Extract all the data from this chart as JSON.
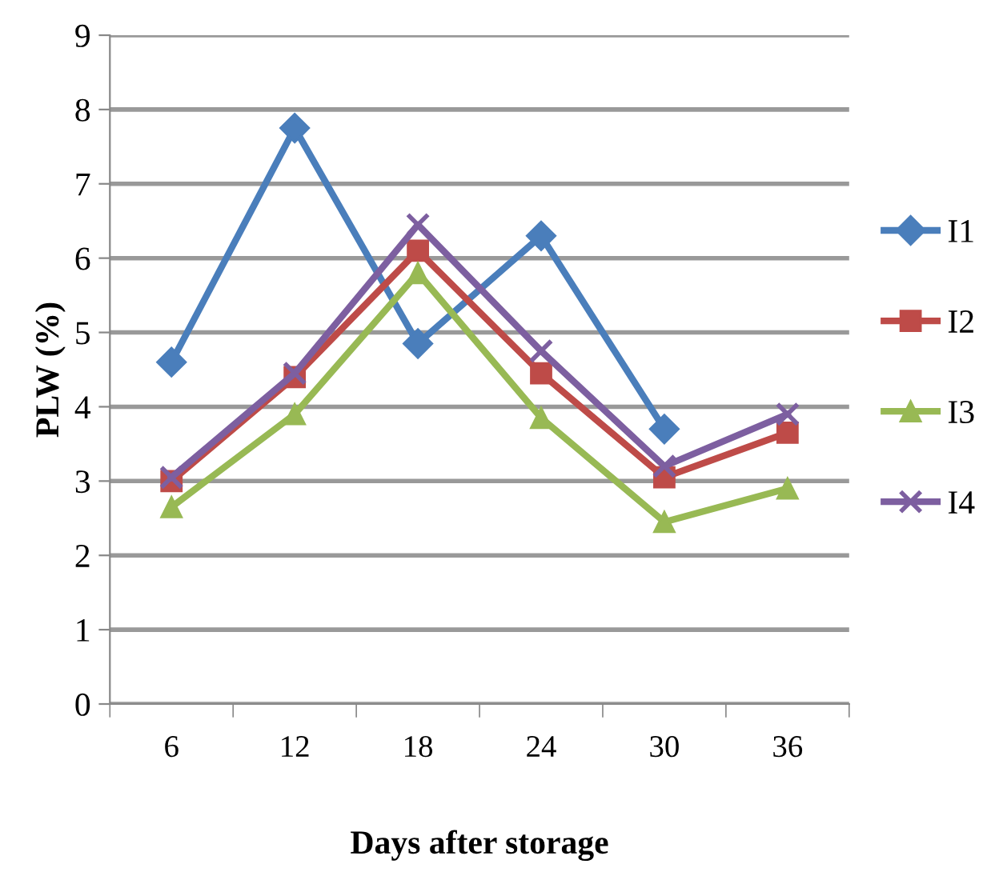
{
  "chart_data": {
    "type": "line",
    "xlabel": "Days after storage",
    "ylabel": "PLW (%)",
    "categories": [
      "6",
      "12",
      "18",
      "24",
      "30",
      "36"
    ],
    "series": [
      {
        "name": "I1",
        "color": "#4a7ebb",
        "marker": "diamond",
        "values": [
          4.6,
          7.75,
          4.85,
          6.3,
          3.7,
          null
        ]
      },
      {
        "name": "I2",
        "color": "#be4b48",
        "marker": "square",
        "values": [
          3.0,
          4.4,
          6.1,
          4.45,
          3.05,
          3.65
        ]
      },
      {
        "name": "I3",
        "color": "#98b954",
        "marker": "triangle",
        "values": [
          2.65,
          3.9,
          5.8,
          3.85,
          2.45,
          2.9
        ]
      },
      {
        "name": "I4",
        "color": "#7d5fa0",
        "marker": "cross",
        "values": [
          3.05,
          4.45,
          6.45,
          4.75,
          3.2,
          3.9
        ]
      }
    ],
    "ylim": [
      0,
      9
    ],
    "yticks": [
      0,
      1,
      2,
      3,
      4,
      5,
      6,
      7,
      8,
      9
    ],
    "grid": "y",
    "legend": "right",
    "line_style": "solid"
  }
}
